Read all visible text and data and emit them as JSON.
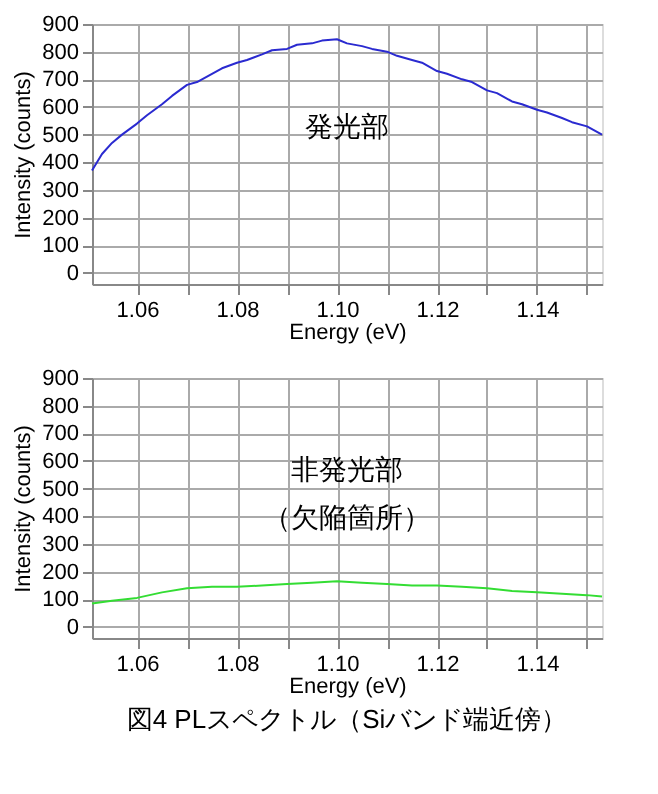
{
  "chart_data": [
    {
      "type": "line",
      "xlabel": "Energy (eV)",
      "ylabel": "Intensity (counts)",
      "xlim": [
        1.051,
        1.153
      ],
      "ylim": [
        -40,
        900
      ],
      "xticks": [
        1.06,
        {
          "value": 1.07,
          "label": null
        },
        1.08,
        {
          "value": 1.09,
          "label": null
        },
        "1.10",
        {
          "value": 1.11,
          "label": null
        },
        1.12,
        {
          "value": 1.13,
          "label": null
        },
        1.14,
        {
          "value": 1.15,
          "label": null
        }
      ],
      "yticks": [
        0,
        100,
        200,
        300,
        400,
        500,
        600,
        700,
        800,
        900
      ],
      "grid": true,
      "annotations": [
        "発光部"
      ],
      "series": [
        {
          "color": "#2a2ad0",
          "x": [
            1.051,
            1.053,
            1.055,
            1.057,
            1.06,
            1.062,
            1.065,
            1.067,
            1.07,
            1.072,
            1.075,
            1.077,
            1.08,
            1.082,
            1.085,
            1.087,
            1.09,
            1.092,
            1.095,
            1.097,
            1.1,
            1.102,
            1.105,
            1.107,
            1.11,
            1.112,
            1.115,
            1.117,
            1.12,
            1.122,
            1.125,
            1.127,
            1.13,
            1.132,
            1.135,
            1.137,
            1.14,
            1.142,
            1.145,
            1.147,
            1.15,
            1.153
          ],
          "values": [
            370,
            430,
            470,
            500,
            540,
            570,
            610,
            640,
            680,
            690,
            720,
            740,
            760,
            770,
            790,
            805,
            810,
            825,
            830,
            840,
            845,
            830,
            820,
            810,
            800,
            785,
            770,
            760,
            730,
            720,
            700,
            690,
            660,
            650,
            620,
            610,
            590,
            580,
            560,
            545,
            530,
            500
          ]
        }
      ]
    },
    {
      "type": "line",
      "title": "図4  PLスペクトル（Siバンド端近傍）",
      "xlabel": "Energy (eV)",
      "ylabel": "Intensity (counts)",
      "xlim": [
        1.051,
        1.153
      ],
      "ylim": [
        -40,
        900
      ],
      "xticks": [
        1.06,
        {
          "value": 1.07,
          "label": null
        },
        1.08,
        {
          "value": 1.09,
          "label": null
        },
        "1.10",
        {
          "value": 1.11,
          "label": null
        },
        1.12,
        {
          "value": 1.13,
          "label": null
        },
        1.14,
        {
          "value": 1.15,
          "label": null
        }
      ],
      "yticks": [
        0,
        100,
        200,
        300,
        400,
        500,
        600,
        700,
        800,
        900
      ],
      "grid": true,
      "annotations": [
        "非発光部",
        "（欠陥箇所）"
      ],
      "series": [
        {
          "color": "#33dd33",
          "x": [
            1.051,
            1.055,
            1.06,
            1.065,
            1.07,
            1.075,
            1.08,
            1.085,
            1.09,
            1.095,
            1.1,
            1.105,
            1.11,
            1.115,
            1.12,
            1.125,
            1.13,
            1.135,
            1.14,
            1.145,
            1.15,
            1.153
          ],
          "values": [
            85,
            95,
            105,
            125,
            140,
            145,
            145,
            150,
            155,
            160,
            165,
            160,
            155,
            150,
            150,
            145,
            140,
            130,
            125,
            120,
            115,
            110
          ]
        }
      ]
    }
  ]
}
